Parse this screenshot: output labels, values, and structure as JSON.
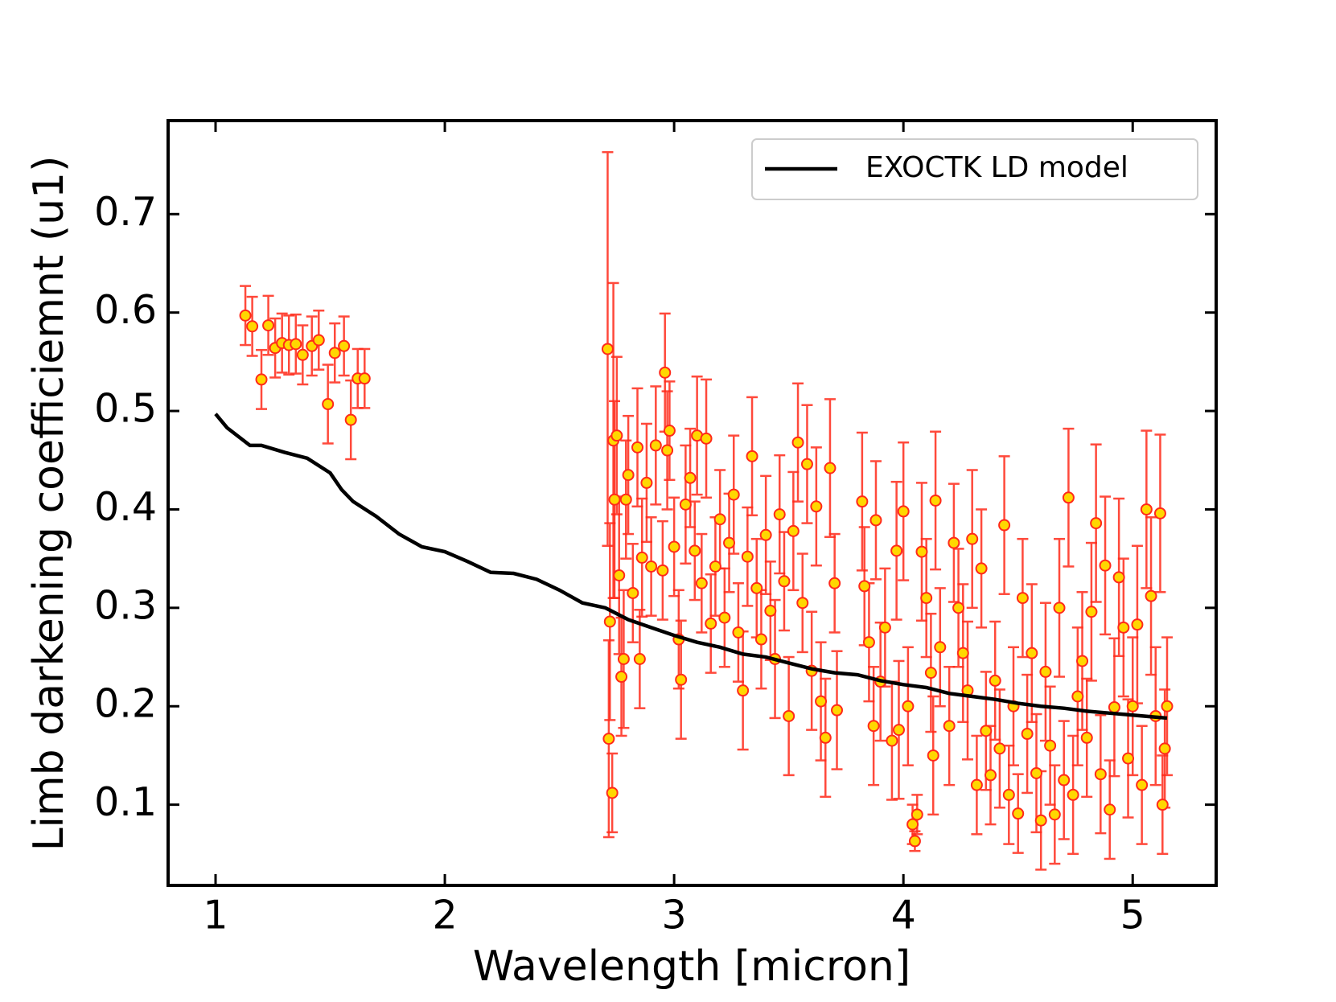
{
  "chart_data": {
    "type": "line",
    "xlabel": "Wavelength [micron]",
    "ylabel": "Limb darkening coefficiemnt (u1)",
    "xlim": [
      0.793,
      5.364
    ],
    "ylim": [
      0.018,
      0.795
    ],
    "xticks": [
      1,
      2,
      3,
      4,
      5
    ],
    "yticks": [
      0.1,
      0.2,
      0.3,
      0.4,
      0.5,
      0.6,
      0.7
    ],
    "legend": "upper right",
    "series": [
      {
        "name": "EXOCTK LD model",
        "type": "line",
        "color": "#000000",
        "x": [
          1.0,
          1.05,
          1.15,
          1.2,
          1.3,
          1.4,
          1.5,
          1.55,
          1.6,
          1.7,
          1.8,
          1.9,
          2.0,
          2.1,
          2.2,
          2.3,
          2.4,
          2.5,
          2.6,
          2.7,
          2.8,
          2.9,
          3.0,
          3.1,
          3.2,
          3.3,
          3.4,
          3.5,
          3.6,
          3.7,
          3.8,
          3.9,
          4.0,
          4.1,
          4.2,
          4.3,
          4.4,
          4.5,
          4.6,
          4.7,
          4.8,
          4.9,
          5.0,
          5.1,
          5.15
        ],
        "values": [
          0.497,
          0.483,
          0.465,
          0.465,
          0.458,
          0.452,
          0.437,
          0.42,
          0.408,
          0.393,
          0.375,
          0.362,
          0.357,
          0.347,
          0.336,
          0.335,
          0.329,
          0.318,
          0.305,
          0.3,
          0.288,
          0.28,
          0.272,
          0.265,
          0.26,
          0.253,
          0.25,
          0.244,
          0.238,
          0.234,
          0.232,
          0.226,
          0.222,
          0.219,
          0.213,
          0.21,
          0.207,
          0.203,
          0.2,
          0.198,
          0.195,
          0.193,
          0.191,
          0.189,
          0.188
        ]
      },
      {
        "type": "errorbar",
        "color": "#ff2a1a",
        "marker_color": "#ffd700",
        "x": [
          1.13,
          1.16,
          1.2,
          1.23,
          1.26,
          1.29,
          1.32,
          1.35,
          1.38,
          1.42,
          1.45,
          1.49,
          1.52,
          1.56,
          1.59,
          1.62,
          1.65,
          2.71,
          2.715,
          2.72,
          2.73,
          2.735,
          2.74,
          2.75,
          2.76,
          2.77,
          2.78,
          2.79,
          2.8,
          2.82,
          2.84,
          2.85,
          2.86,
          2.88,
          2.9,
          2.92,
          2.95,
          2.96,
          2.97,
          2.98,
          3.0,
          3.02,
          3.03,
          3.05,
          3.07,
          3.09,
          3.1,
          3.12,
          3.14,
          3.16,
          3.18,
          3.2,
          3.22,
          3.24,
          3.26,
          3.28,
          3.3,
          3.32,
          3.34,
          3.36,
          3.38,
          3.4,
          3.42,
          3.44,
          3.46,
          3.48,
          3.5,
          3.52,
          3.54,
          3.56,
          3.58,
          3.6,
          3.62,
          3.64,
          3.66,
          3.68,
          3.7,
          3.71,
          3.82,
          3.83,
          3.85,
          3.87,
          3.88,
          3.9,
          3.92,
          3.95,
          3.97,
          3.98,
          4.0,
          4.02,
          4.04,
          4.05,
          4.06,
          4.08,
          4.1,
          4.12,
          4.13,
          4.14,
          4.16,
          4.2,
          4.22,
          4.24,
          4.26,
          4.28,
          4.3,
          4.32,
          4.34,
          4.36,
          4.38,
          4.4,
          4.42,
          4.44,
          4.46,
          4.48,
          4.5,
          4.52,
          4.54,
          4.56,
          4.58,
          4.6,
          4.62,
          4.64,
          4.66,
          4.68,
          4.7,
          4.72,
          4.74,
          4.76,
          4.78,
          4.8,
          4.82,
          4.84,
          4.86,
          4.88,
          4.9,
          4.92,
          4.94,
          4.96,
          4.98,
          5.0,
          5.02,
          5.04,
          5.06,
          5.08,
          5.1,
          5.12,
          5.13,
          5.14,
          5.15
        ],
        "values": [
          0.597,
          0.586,
          0.532,
          0.587,
          0.564,
          0.569,
          0.567,
          0.568,
          0.557,
          0.566,
          0.572,
          0.507,
          0.559,
          0.566,
          0.491,
          0.533,
          0.533,
          0.563,
          0.167,
          0.286,
          0.112,
          0.47,
          0.41,
          0.475,
          0.333,
          0.23,
          0.248,
          0.41,
          0.435,
          0.315,
          0.463,
          0.248,
          0.351,
          0.427,
          0.342,
          0.465,
          0.338,
          0.539,
          0.46,
          0.48,
          0.362,
          0.268,
          0.227,
          0.405,
          0.432,
          0.358,
          0.475,
          0.325,
          0.472,
          0.284,
          0.342,
          0.39,
          0.29,
          0.366,
          0.415,
          0.275,
          0.216,
          0.352,
          0.454,
          0.32,
          0.268,
          0.374,
          0.297,
          0.248,
          0.395,
          0.327,
          0.19,
          0.378,
          0.468,
          0.305,
          0.446,
          0.236,
          0.403,
          0.205,
          0.168,
          0.442,
          0.325,
          0.196,
          0.408,
          0.322,
          0.265,
          0.18,
          0.389,
          0.225,
          0.28,
          0.165,
          0.358,
          0.176,
          0.398,
          0.2,
          0.08,
          0.063,
          0.09,
          0.357,
          0.31,
          0.234,
          0.15,
          0.409,
          0.26,
          0.18,
          0.366,
          0.3,
          0.254,
          0.216,
          0.37,
          0.12,
          0.34,
          0.175,
          0.13,
          0.226,
          0.157,
          0.384,
          0.11,
          0.2,
          0.091,
          0.31,
          0.172,
          0.254,
          0.132,
          0.084,
          0.235,
          0.16,
          0.09,
          0.3,
          0.125,
          0.412,
          0.11,
          0.21,
          0.246,
          0.168,
          0.296,
          0.386,
          0.131,
          0.343,
          0.095,
          0.199,
          0.331,
          0.28,
          0.147,
          0.2,
          0.283,
          0.12,
          0.4,
          0.312,
          0.19,
          0.396,
          0.1,
          0.157,
          0.2
        ],
        "errors": [
          0.03,
          0.03,
          0.03,
          0.03,
          0.03,
          0.03,
          0.03,
          0.03,
          0.03,
          0.03,
          0.03,
          0.04,
          0.03,
          0.03,
          0.04,
          0.03,
          0.03,
          0.2,
          0.1,
          0.1,
          0.04,
          0.16,
          0.1,
          0.08,
          0.08,
          0.06,
          0.07,
          0.06,
          0.06,
          0.05,
          0.06,
          0.05,
          0.06,
          0.06,
          0.05,
          0.06,
          0.05,
          0.06,
          0.06,
          0.05,
          0.05,
          0.05,
          0.06,
          0.06,
          0.05,
          0.05,
          0.06,
          0.05,
          0.06,
          0.05,
          0.05,
          0.05,
          0.05,
          0.05,
          0.06,
          0.05,
          0.06,
          0.05,
          0.06,
          0.05,
          0.05,
          0.06,
          0.05,
          0.06,
          0.06,
          0.05,
          0.06,
          0.06,
          0.06,
          0.05,
          0.06,
          0.06,
          0.06,
          0.06,
          0.06,
          0.07,
          0.05,
          0.06,
          0.07,
          0.06,
          0.06,
          0.06,
          0.06,
          0.06,
          0.06,
          0.06,
          0.07,
          0.07,
          0.07,
          0.06,
          0.02,
          0.01,
          0.02,
          0.07,
          0.06,
          0.06,
          0.06,
          0.07,
          0.06,
          0.06,
          0.06,
          0.06,
          0.07,
          0.07,
          0.07,
          0.05,
          0.06,
          0.06,
          0.05,
          0.06,
          0.06,
          0.07,
          0.05,
          0.06,
          0.04,
          0.06,
          0.06,
          0.07,
          0.06,
          0.05,
          0.07,
          0.06,
          0.05,
          0.07,
          0.06,
          0.07,
          0.06,
          0.07,
          0.07,
          0.06,
          0.07,
          0.08,
          0.06,
          0.07,
          0.05,
          0.07,
          0.08,
          0.07,
          0.06,
          0.07,
          0.08,
          0.06,
          0.08,
          0.08,
          0.07,
          0.08,
          0.05,
          0.06,
          0.07
        ]
      }
    ]
  }
}
